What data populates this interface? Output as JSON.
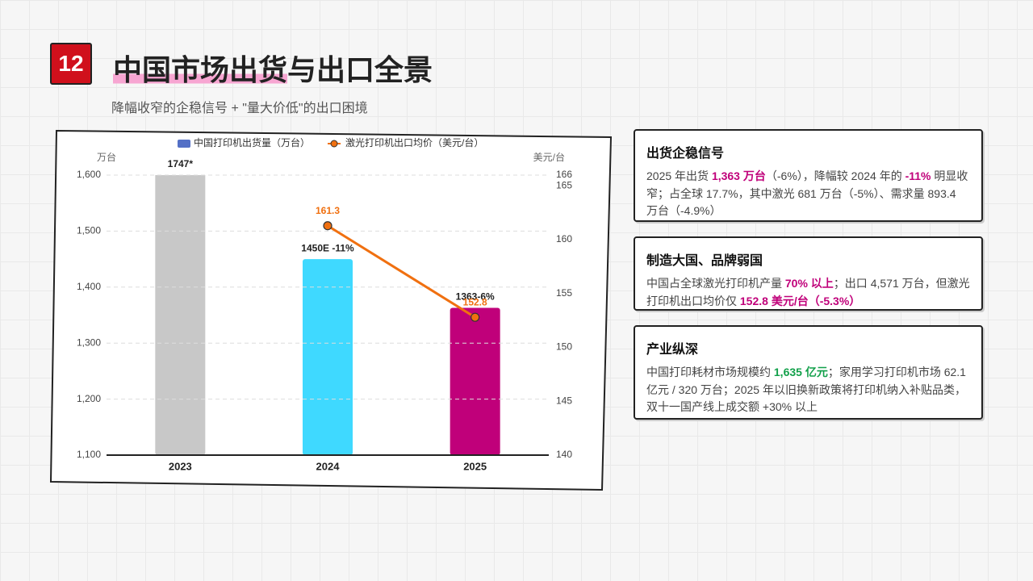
{
  "header": {
    "badge": "12",
    "title_highlight": "中国市场出货",
    "title_rest": "与出口全景",
    "subtitle": "降幅收窄的企稳信号 + \"量大价低\"的出口困境"
  },
  "chart_data": {
    "type": "bar_line",
    "categories": [
      "2023",
      "2024",
      "2025"
    ],
    "ylabel": "万台",
    "y2label": "美元/台",
    "ylim": [
      1100,
      1600
    ],
    "yticks": [
      {
        "value": 1100,
        "label": "1,100"
      },
      {
        "value": 1200,
        "label": "1,200"
      },
      {
        "value": 1300,
        "label": "1,300"
      },
      {
        "value": 1400,
        "label": "1,400"
      },
      {
        "value": 1500,
        "label": "1,500"
      },
      {
        "value": 1600,
        "label": "1,600"
      }
    ],
    "y2lim": [
      140,
      166
    ],
    "y2ticks": [
      140,
      145,
      150,
      155,
      160,
      165,
      166
    ],
    "grid": true,
    "legend": "top",
    "series": [
      {
        "name": "中国打印机出货量（万台）",
        "type": "bar",
        "color": "#5470c6",
        "colors": [
          "#c8c8c8",
          "#3fd9ff",
          "#c0007a"
        ],
        "values": [
          1747,
          1450,
          1363
        ],
        "value_labels": [
          "1747*",
          "1450E -11%",
          "1363-6%"
        ]
      },
      {
        "name": "激光打印机出口均价（美元/台）",
        "type": "line",
        "axis": "y2",
        "color": "#f07010",
        "values": [
          null,
          161.3,
          152.8
        ]
      }
    ]
  },
  "cards": [
    {
      "title": "出货企稳信号",
      "parts": [
        {
          "text": "2025 年出货 "
        },
        {
          "text": "1,363 万台",
          "color": "#c0007a"
        },
        {
          "text": "（-6%），降幅较 2024 年的 "
        },
        {
          "text": "-11%",
          "color": "#c0007a"
        },
        {
          "text": " 明显收窄；占全球 17.7%，其中激光 681 万台（-5%）、需求量 893.4 万台（-4.9%）"
        }
      ]
    },
    {
      "title": "制造大国、品牌弱国",
      "parts": [
        {
          "text": "中国占全球激光打印机产量 "
        },
        {
          "text": "70% 以上",
          "color": "#c0007a"
        },
        {
          "text": "；出口 4,571 万台，但激光打印机出口均价仅 "
        },
        {
          "text": "152.8 美元/台（-5.3%）",
          "color": "#c0007a"
        }
      ]
    },
    {
      "title": "产业纵深",
      "parts": [
        {
          "text": "中国打印耗材市场规模约 "
        },
        {
          "text": "1,635 亿元",
          "color": "#12a04a"
        },
        {
          "text": "；家用学习打印机市场 62.1 亿元 / 320 万台；2025 年以旧换新政策将打印机纳入补贴品类，双十一国产线上成交额 +30% 以上"
        }
      ]
    }
  ]
}
